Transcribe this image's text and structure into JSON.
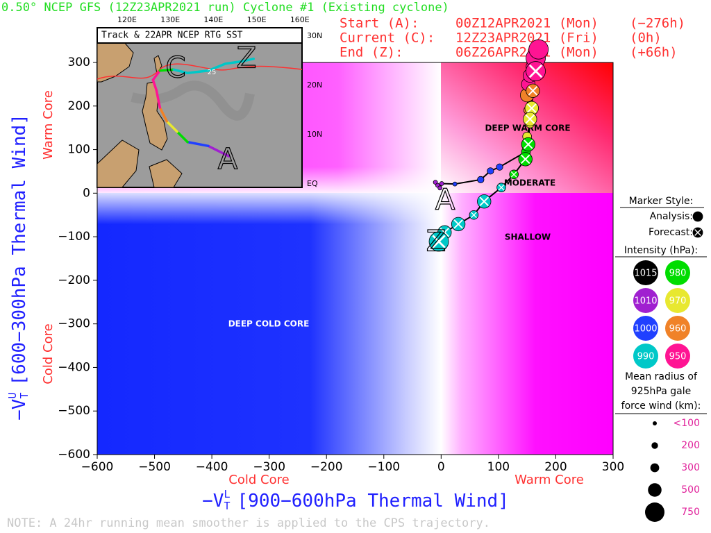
{
  "chart_data": {
    "type": "phase_space",
    "title": "0.50° NCEP GFS (12Z23APR2021 run) Cyclone #1 (Existing cyclone)",
    "header": [
      [
        "Start (A):",
        "00Z12APR2021 (Mon)",
        "(−276h)"
      ],
      [
        "Current (C):",
        "12Z23APR2021 (Fri)",
        "(0h)"
      ],
      [
        "End (Z):",
        "06Z26APR2021 (Mon)",
        "(+66h)"
      ]
    ],
    "x_label": {
      "symbol": "−V",
      "sub": "T",
      "sup": "L",
      "text": "[900−600hPa Thermal Wind]"
    },
    "y_label": {
      "symbol": "−V",
      "sub": "T",
      "sup": "U",
      "text": "[600−300hPa Thermal Wind]"
    },
    "x_side_labels": [
      "Cold Core",
      "Warm Core"
    ],
    "y_side_labels": [
      "Cold Core",
      "Warm Core"
    ],
    "regions": [
      "DEEP WARM CORE",
      "MODERATE",
      "SHALLOW",
      "DEEP COLD CORE"
    ],
    "start_label": "A",
    "end_label": "Z",
    "xlim": [
      -600,
      300
    ],
    "ylim": [
      -600,
      300
    ],
    "xticks": [
      {
        "value": -600,
        "label": "−600"
      },
      {
        "value": -500,
        "label": "−500"
      },
      {
        "value": -400,
        "label": "−400"
      },
      {
        "value": -300,
        "label": "−300"
      },
      {
        "value": -200,
        "label": "−200"
      },
      {
        "value": -100,
        "label": "−100"
      },
      0,
      100,
      200,
      300
    ],
    "yticks": [
      {
        "value": -600,
        "label": "−600"
      },
      {
        "value": -500,
        "label": "−500"
      },
      {
        "value": -400,
        "label": "−400"
      },
      {
        "value": -300,
        "label": "−300"
      },
      {
        "value": -200,
        "label": "−200"
      },
      {
        "value": -100,
        "label": "−100"
      },
      0,
      100,
      200,
      300
    ],
    "series": [
      {
        "marker": "analysis",
        "x": [
          -10,
          -6,
          -2,
          1,
          24,
          69,
          86,
          102,
          148,
          150,
          155,
          152,
          150,
          152,
          155,
          160,
          165,
          170
        ],
        "y": [
          25,
          18,
          12,
          22,
          21,
          31,
          51,
          60,
          95,
          130,
          160,
          190,
          225,
          250,
          270,
          290,
          310,
          330
        ],
        "intensity": [
          1010,
          1010,
          1010,
          1010,
          1000,
          1000,
          1000,
          1000,
          980,
          970,
          970,
          960,
          960,
          950,
          950,
          950,
          950,
          950
        ],
        "radius_km": [
          100,
          100,
          100,
          100,
          100,
          200,
          200,
          200,
          300,
          300,
          300,
          300,
          500,
          500,
          500,
          500,
          750,
          750
        ]
      },
      {
        "marker": "forecast",
        "x": [
          165,
          160,
          158,
          155,
          152,
          147,
          127,
          105,
          75,
          57,
          30,
          6,
          -4
        ],
        "y": [
          280,
          235,
          195,
          170,
          112,
          78,
          43,
          13,
          -19,
          -50,
          -71,
          -90,
          -111
        ],
        "intensity": [
          950,
          960,
          970,
          970,
          980,
          980,
          980,
          990,
          990,
          990,
          990,
          990,
          990
        ],
        "radius_km": [
          750,
          500,
          500,
          500,
          500,
          500,
          300,
          300,
          500,
          300,
          500,
          500,
          750
        ]
      }
    ],
    "legend": {
      "marker_title": "Marker Style:",
      "analysis": "Analysis:",
      "forecast": "Forecast:",
      "intensity_title": "Intensity (hPa):",
      "intensity": [
        {
          "value": 1015,
          "color": "#000000"
        },
        {
          "value": 980,
          "color": "#00dd00"
        },
        {
          "value": 1010,
          "color": "#a020d0"
        },
        {
          "value": 970,
          "color": "#e8e830"
        },
        {
          "value": 1000,
          "color": "#2040ff"
        },
        {
          "value": 960,
          "color": "#f08228"
        },
        {
          "value": 990,
          "color": "#00c8c8"
        },
        {
          "value": 950,
          "color": "#ff1493"
        }
      ],
      "size_title": [
        "Mean radius of",
        "925hPa gale",
        "force wind (km):"
      ],
      "sizes": [
        {
          "value": 100,
          "label": "<100"
        },
        200,
        300,
        500,
        750
      ]
    },
    "inset": {
      "title": "Track & 22APR NCEP RTG SST",
      "lon_ticks": [
        "120E",
        "130E",
        "140E",
        "150E",
        "160E"
      ],
      "lat_ticks": [
        "30N",
        "20N",
        "10N",
        "EQ"
      ],
      "contour_label": "25",
      "letters": [
        "C",
        "Z",
        "A"
      ],
      "track_lon": [
        143.6,
        138.8,
        134.0,
        131.6,
        129.2,
        127.6,
        126.8,
        126.0,
        127.6,
        130.8,
        134.0,
        138.8,
        142.8,
        146.8,
        149.3
      ],
      "track_lat": [
        5.6,
        7.7,
        8.5,
        10.6,
        12.7,
        15.5,
        19.0,
        21.1,
        23.0,
        23.2,
        22.5,
        23.0,
        24.4,
        24.9,
        25.4
      ],
      "track_colors": [
        "#a020d0",
        "#2040ff",
        "#00dd00",
        "#e8e830",
        "#f08228",
        "#ff1493",
        "#ff1493",
        "#ff1493",
        "#00dd00",
        "#00c8c8",
        "#00c8c8",
        "#00c8c8",
        "#00c8c8",
        "#00c8c8"
      ]
    },
    "note": "NOTE:  A 24hr running mean smoother is applied to the CPS trajectory."
  }
}
